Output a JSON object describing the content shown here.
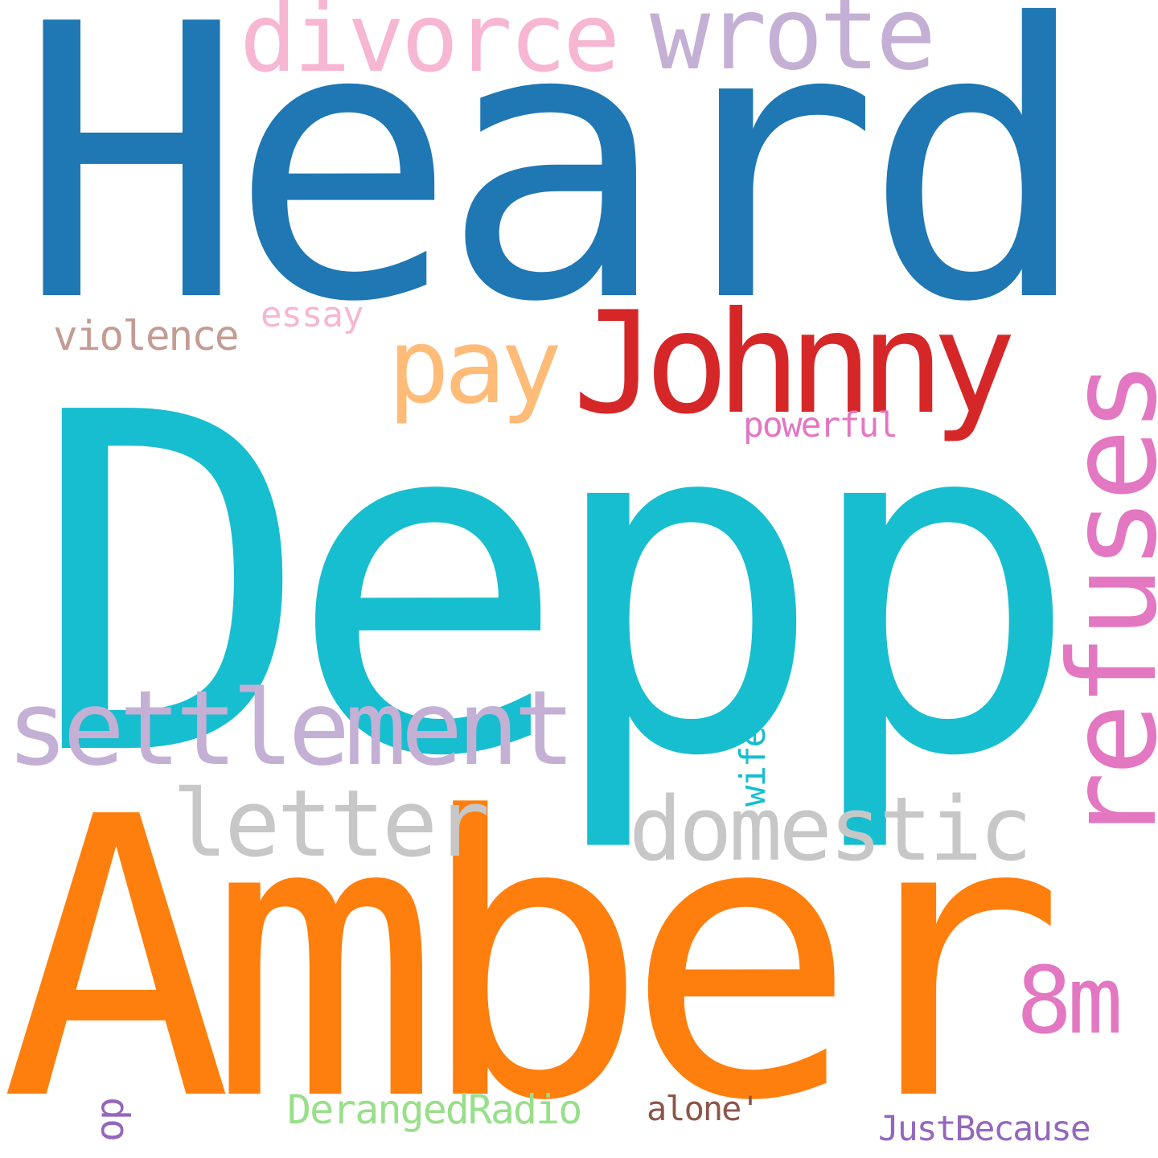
{
  "background": "#ffffff",
  "words": [
    {
      "id": "heard",
      "text": "Heard",
      "color": "#1f77b4",
      "orientation": "horizontal"
    },
    {
      "id": "depp",
      "text": "Depp",
      "color": "#17becf",
      "orientation": "horizontal"
    },
    {
      "id": "amber",
      "text": "Amber",
      "color": "#ff7f0e",
      "orientation": "horizontal"
    },
    {
      "id": "johnny",
      "text": "Johnny",
      "color": "#d62728",
      "orientation": "horizontal"
    },
    {
      "id": "refuses",
      "text": "refuses",
      "color": "#e377c2",
      "orientation": "vertical"
    },
    {
      "id": "settlement",
      "text": "settlement",
      "color": "#c5b0d5",
      "orientation": "horizontal"
    },
    {
      "id": "divorce",
      "text": "divorce",
      "color": "#f7b6d2",
      "orientation": "horizontal"
    },
    {
      "id": "wrote",
      "text": "wrote",
      "color": "#c5b0d5",
      "orientation": "horizontal"
    },
    {
      "id": "pay",
      "text": "pay",
      "color": "#ffbb78",
      "orientation": "horizontal"
    },
    {
      "id": "domestic",
      "text": "domestic",
      "color": "#c7c7c7",
      "orientation": "horizontal"
    },
    {
      "id": "letter",
      "text": "letter",
      "color": "#c7c7c7",
      "orientation": "horizontal"
    },
    {
      "id": "8m",
      "text": "8m",
      "color": "#e377c2",
      "orientation": "horizontal"
    },
    {
      "id": "violence",
      "text": "violence",
      "color": "#c49c94",
      "orientation": "horizontal"
    },
    {
      "id": "essay",
      "text": "essay",
      "color": "#f7b6d2",
      "orientation": "horizontal"
    },
    {
      "id": "powerful",
      "text": "powerful",
      "color": "#e377c2",
      "orientation": "horizontal"
    },
    {
      "id": "wife",
      "text": "wife",
      "color": "#17becf",
      "orientation": "vertical"
    },
    {
      "id": "op",
      "text": "op",
      "color": "#9467bd",
      "orientation": "vertical"
    },
    {
      "id": "derangedradio",
      "text": "DerangedRadio",
      "color": "#98df8a",
      "orientation": "horizontal"
    },
    {
      "id": "alone",
      "text": "alone'",
      "color": "#8c564b",
      "orientation": "horizontal"
    },
    {
      "id": "justbecause",
      "text": "JustBecause",
      "color": "#9467bd",
      "orientation": "horizontal"
    }
  ]
}
